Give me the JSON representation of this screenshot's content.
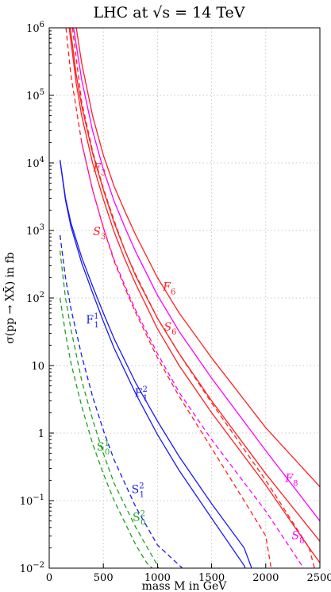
{
  "chart_data": {
    "type": "line",
    "title": "LHC at √s = 14 TeV",
    "xlabel": "mass M in GeV",
    "ylabel": "σ(pp → XX̄) in fb",
    "xlim": [
      0,
      2500
    ],
    "ylim": [
      0.01,
      1000000
    ],
    "y_scale": "log",
    "grid": "dotted",
    "x_ticks": [
      {
        "value": 0,
        "label": "0"
      },
      {
        "value": 500,
        "label": "500"
      },
      {
        "value": 1000,
        "label": "1000"
      },
      {
        "value": 1500,
        "label": "1500"
      },
      {
        "value": 2000,
        "label": "2000"
      },
      {
        "value": 2500,
        "label": "2500"
      }
    ],
    "y_ticks": [
      {
        "value": 0.01,
        "base": "10",
        "exp": "−2"
      },
      {
        "value": 0.1,
        "base": "10",
        "exp": "−1"
      },
      {
        "value": 1,
        "base": "1",
        "exp": ""
      },
      {
        "value": 10,
        "base": "10",
        "exp": ""
      },
      {
        "value": 100,
        "base": "10",
        "exp": "2"
      },
      {
        "value": 1000,
        "base": "10",
        "exp": "3"
      },
      {
        "value": 10000,
        "base": "10",
        "exp": "4"
      },
      {
        "value": 100000,
        "base": "10",
        "exp": "5"
      },
      {
        "value": 1000000,
        "base": "10",
        "exp": "6"
      }
    ],
    "series": [
      {
        "color": "#ff2020",
        "dash": "solid",
        "points": [
          [
            250,
            1000000
          ],
          [
            300,
            300000
          ],
          [
            400,
            50000
          ],
          [
            500,
            13000
          ],
          [
            600,
            4500
          ],
          [
            700,
            1900
          ],
          [
            800,
            850
          ],
          [
            1000,
            200
          ],
          [
            1200,
            60
          ],
          [
            1500,
            13
          ],
          [
            2000,
            1.2
          ],
          [
            2500,
            0.16
          ]
        ]
      },
      {
        "color": "#ff2020",
        "dash": "solid",
        "points": [
          [
            195,
            1000000
          ],
          [
            250,
            200000
          ],
          [
            300,
            70000
          ],
          [
            400,
            14000
          ],
          [
            500,
            4000
          ],
          [
            600,
            1300
          ],
          [
            700,
            500
          ],
          [
            800,
            210
          ],
          [
            1000,
            50
          ],
          [
            1200,
            15
          ],
          [
            1500,
            3
          ],
          [
            2000,
            0.25
          ],
          [
            2500,
            0.025
          ]
        ]
      },
      {
        "color": "#ff2020",
        "dash": "solid",
        "points": [
          [
            185,
            1000000
          ],
          [
            250,
            150000
          ],
          [
            300,
            50000
          ],
          [
            400,
            10000
          ],
          [
            500,
            2900
          ],
          [
            600,
            950
          ],
          [
            700,
            370
          ],
          [
            800,
            160
          ],
          [
            1000,
            35
          ],
          [
            1200,
            10
          ],
          [
            1500,
            2
          ],
          [
            2000,
            0.17
          ],
          [
            2400,
            0.02
          ],
          [
            2500,
            0.012
          ]
        ]
      },
      {
        "color": "#ff2020",
        "dash": "dashed",
        "points": [
          [
            155,
            1000000
          ],
          [
            200,
            200000
          ],
          [
            300,
            20000
          ],
          [
            400,
            4000
          ],
          [
            500,
            1100
          ],
          [
            600,
            350
          ],
          [
            700,
            140
          ],
          [
            800,
            60
          ],
          [
            1000,
            13
          ],
          [
            1200,
            3.5
          ],
          [
            1500,
            0.6
          ],
          [
            1800,
            0.1
          ],
          [
            2000,
            0.03
          ],
          [
            2050,
            0.01
          ]
        ]
      },
      {
        "color": "#ff2020",
        "dash": "dashed",
        "points": [
          [
            215,
            1000000
          ],
          [
            300,
            80000
          ],
          [
            400,
            15000
          ],
          [
            500,
            4200
          ],
          [
            600,
            1400
          ],
          [
            700,
            500
          ],
          [
            800,
            220
          ],
          [
            1000,
            50
          ],
          [
            1200,
            15
          ],
          [
            1500,
            2.8
          ],
          [
            2000,
            0.2
          ],
          [
            2400,
            0.02
          ],
          [
            2450,
            0.01
          ]
        ]
      },
      {
        "color": "#ff00ff",
        "dash": "solid",
        "points": [
          [
            225,
            1000000
          ],
          [
            300,
            170000
          ],
          [
            400,
            30000
          ],
          [
            500,
            8000
          ],
          [
            600,
            2700
          ],
          [
            700,
            1100
          ],
          [
            800,
            480
          ],
          [
            1000,
            110
          ],
          [
            1200,
            32
          ],
          [
            1500,
            6.5
          ],
          [
            2000,
            0.55
          ],
          [
            2500,
            0.05
          ]
        ]
      },
      {
        "color": "#ff00ff",
        "dash": "dashed",
        "points": [
          [
            300,
            20000
          ],
          [
            400,
            4000
          ],
          [
            500,
            1100
          ],
          [
            600,
            370
          ],
          [
            700,
            150
          ],
          [
            800,
            65
          ],
          [
            1000,
            15
          ],
          [
            1200,
            4
          ],
          [
            1500,
            0.8
          ],
          [
            2000,
            0.07
          ],
          [
            2350,
            0.01
          ]
        ]
      },
      {
        "color": "#1a1af5",
        "dash": "solid",
        "points": [
          [
            100,
            11000
          ],
          [
            150,
            3000
          ],
          [
            200,
            1300
          ],
          [
            300,
            400
          ],
          [
            400,
            150
          ],
          [
            500,
            60
          ],
          [
            600,
            25
          ],
          [
            800,
            5.5
          ],
          [
            1000,
            1.5
          ],
          [
            1200,
            0.45
          ],
          [
            1500,
            0.09
          ],
          [
            1800,
            0.02
          ],
          [
            1870,
            0.01
          ]
        ]
      },
      {
        "color": "#1a1af5",
        "dash": "solid",
        "points": [
          [
            100,
            11000
          ],
          [
            150,
            2800
          ],
          [
            200,
            1150
          ],
          [
            300,
            330
          ],
          [
            400,
            120
          ],
          [
            500,
            45
          ],
          [
            600,
            18
          ],
          [
            800,
            3.8
          ],
          [
            1000,
            0.95
          ],
          [
            1200,
            0.28
          ],
          [
            1500,
            0.055
          ],
          [
            1800,
            0.011
          ],
          [
            1810,
            0.01
          ]
        ]
      },
      {
        "color": "#1a1af5",
        "dash": "dashed",
        "points": [
          [
            100,
            850
          ],
          [
            150,
            200
          ],
          [
            200,
            70
          ],
          [
            300,
            14
          ],
          [
            400,
            3.5
          ],
          [
            500,
            1.1
          ],
          [
            600,
            0.4
          ],
          [
            800,
            0.08
          ],
          [
            1000,
            0.022
          ],
          [
            1230,
            0.01
          ]
        ]
      },
      {
        "color": "#20a020",
        "dash": "dashed",
        "points": [
          [
            100,
            100
          ],
          [
            150,
            30
          ],
          [
            200,
            11
          ],
          [
            300,
            2.5
          ],
          [
            400,
            0.7
          ],
          [
            500,
            0.25
          ],
          [
            600,
            0.1
          ],
          [
            800,
            0.022
          ],
          [
            900,
            0.012
          ],
          [
            950,
            0.01
          ]
        ]
      },
      {
        "color": "#20a020",
        "dash": "dashed",
        "points": [
          [
            100,
            500
          ],
          [
            150,
            100
          ],
          [
            200,
            35
          ],
          [
            300,
            6
          ],
          [
            400,
            1.6
          ],
          [
            500,
            0.5
          ],
          [
            600,
            0.18
          ],
          [
            800,
            0.04
          ],
          [
            1000,
            0.011
          ],
          [
            1010,
            0.01
          ]
        ]
      }
    ],
    "annotations": [
      {
        "text": "F",
        "sub": "3",
        "sup": "",
        "italic": true,
        "x": 405,
        "y": 7500,
        "color": "#ff2020"
      },
      {
        "text": "S",
        "sub": "3",
        "sup": "",
        "italic": true,
        "x": 405,
        "y": 850,
        "color": "#ff2020"
      },
      {
        "text": "F",
        "sub": "6",
        "sup": "",
        "italic": true,
        "x": 1050,
        "y": 130,
        "color": "#ff2020"
      },
      {
        "text": "S",
        "sub": "6",
        "sup": "",
        "italic": true,
        "x": 1060,
        "y": 33,
        "color": "#ff2020"
      },
      {
        "text": "F",
        "sub": "1",
        "sup": "1",
        "italic": false,
        "x": 340,
        "y": 42,
        "color": "#1a1af5"
      },
      {
        "text": "F",
        "sub": "1",
        "sup": "2",
        "italic": false,
        "x": 790,
        "y": 3.5,
        "color": "#1a1af5"
      },
      {
        "text": "S",
        "sub": "0",
        "sup": "1",
        "italic": false,
        "x": 440,
        "y": 0.55,
        "color": "#20a020"
      },
      {
        "text": "S",
        "sub": "1",
        "sup": "2",
        "italic": false,
        "x": 760,
        "y": 0.13,
        "color": "#1a1af5"
      },
      {
        "text": "S",
        "sub": "0",
        "sup": "2",
        "italic": false,
        "x": 770,
        "y": 0.05,
        "color": "#20a020"
      },
      {
        "text": "F",
        "sub": "8",
        "sup": "",
        "italic": true,
        "x": 2180,
        "y": 0.19,
        "color": "#ff00ff"
      },
      {
        "text": "S",
        "sub": "8",
        "sup": "",
        "italic": true,
        "x": 2240,
        "y": 0.027,
        "color": "#ff00ff"
      }
    ]
  }
}
